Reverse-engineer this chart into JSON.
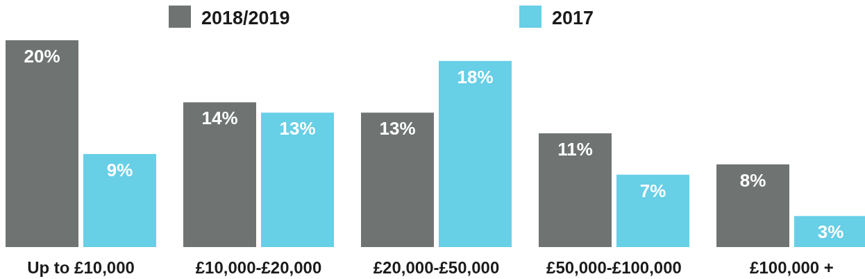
{
  "chart_data": {
    "type": "bar",
    "categories": [
      "Up to £10,000",
      "£10,000-£20,000",
      "£20,000-£50,000",
      "£50,000-£100,000",
      "£100,000 +"
    ],
    "series": [
      {
        "name": "2018/2019",
        "color": "#6f7472",
        "values": [
          20,
          14,
          13,
          11,
          8
        ],
        "value_labels": [
          "20%",
          "14%",
          "13%",
          "11%",
          "8%"
        ]
      },
      {
        "name": "2017",
        "color": "#67cfe6",
        "values": [
          9,
          13,
          18,
          7,
          3
        ],
        "value_labels": [
          "9%",
          "13%",
          "18%",
          "7%",
          "3%"
        ]
      }
    ],
    "legend": "top"
  }
}
